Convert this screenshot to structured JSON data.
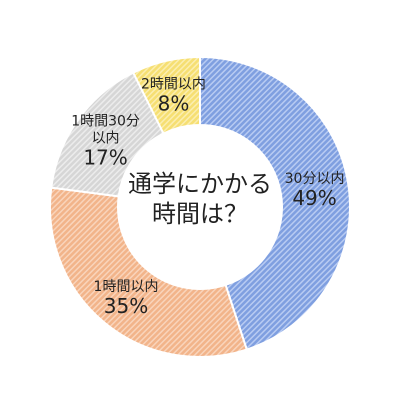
{
  "chart_data": {
    "type": "pie",
    "center_text": [
      "通学にかかる",
      "時間は？"
    ],
    "categories": [
      "30分以内",
      "1時間以内",
      "1時間30分以内",
      "2時間以内"
    ],
    "values": [
      49,
      35,
      17,
      8
    ],
    "unit": "%",
    "value_labels": [
      "49%",
      "35%",
      "17%",
      "8%"
    ],
    "label_lines": [
      [
        "30分以内"
      ],
      [
        "1時間以内"
      ],
      [
        "1時間30分",
        "以内"
      ],
      [
        "2時間以内"
      ]
    ],
    "colors": [
      "#7f9fe0",
      "#f2b48a",
      "#d6d6d6",
      "#f6df72"
    ],
    "stripe_colors": [
      "#b8cbf2",
      "#f9d4bb",
      "#ececec",
      "#fbeeb0"
    ],
    "donut": true
  }
}
